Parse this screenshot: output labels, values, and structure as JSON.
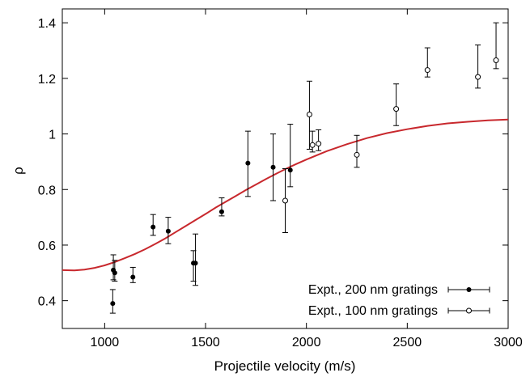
{
  "chart_data": {
    "type": "scatter",
    "xlabel": "Projectile velocity (m/s)",
    "ylabel": "ρ",
    "xlim": [
      790,
      3000
    ],
    "ylim": [
      0.3,
      1.45
    ],
    "xticks": [
      {
        "value": 1000,
        "label": "1000"
      },
      {
        "value": 1500,
        "label": "1500"
      },
      {
        "value": 2000,
        "label": "2000"
      },
      {
        "value": 2500,
        "label": "2500"
      },
      {
        "value": 3000,
        "label": "3000"
      }
    ],
    "yticks": [
      {
        "value": 0.4,
        "label": "0.4"
      },
      {
        "value": 0.6,
        "label": "0.6"
      },
      {
        "value": 0.8,
        "label": "0.8"
      },
      {
        "value": 1.0,
        "label": "1"
      },
      {
        "value": 1.2,
        "label": "1.2"
      },
      {
        "value": 1.4,
        "label": "1.4"
      }
    ],
    "grid": false,
    "legend_position": "bottom-right",
    "series": [
      {
        "name": "Expt., 200 nm gratings",
        "marker": "filled-circle",
        "color": "#000000",
        "points": [
          {
            "x": 1040,
            "y": 0.39,
            "ylo": 0.355,
            "yhi": 0.44
          },
          {
            "x": 1043,
            "y": 0.51,
            "ylo": 0.475,
            "yhi": 0.565
          },
          {
            "x": 1050,
            "y": 0.5,
            "ylo": 0.47,
            "yhi": 0.545
          },
          {
            "x": 1140,
            "y": 0.485,
            "ylo": 0.465,
            "yhi": 0.52
          },
          {
            "x": 1240,
            "y": 0.665,
            "ylo": 0.635,
            "yhi": 0.71
          },
          {
            "x": 1315,
            "y": 0.65,
            "ylo": 0.605,
            "yhi": 0.7
          },
          {
            "x": 1440,
            "y": 0.535,
            "ylo": 0.47,
            "yhi": 0.58
          },
          {
            "x": 1450,
            "y": 0.535,
            "ylo": 0.455,
            "yhi": 0.64
          },
          {
            "x": 1580,
            "y": 0.72,
            "ylo": 0.705,
            "yhi": 0.77
          },
          {
            "x": 1710,
            "y": 0.895,
            "ylo": 0.775,
            "yhi": 1.01
          },
          {
            "x": 1835,
            "y": 0.88,
            "ylo": 0.76,
            "yhi": 1.0
          },
          {
            "x": 1920,
            "y": 0.87,
            "ylo": 0.81,
            "yhi": 1.035
          }
        ]
      },
      {
        "name": "Expt., 100 nm gratings",
        "marker": "open-circle",
        "color": "#000000",
        "points": [
          {
            "x": 1895,
            "y": 0.76,
            "ylo": 0.645,
            "yhi": 0.875
          },
          {
            "x": 2015,
            "y": 1.07,
            "ylo": 0.945,
            "yhi": 1.19
          },
          {
            "x": 2030,
            "y": 0.96,
            "ylo": 0.935,
            "yhi": 1.01
          },
          {
            "x": 2060,
            "y": 0.965,
            "ylo": 0.94,
            "yhi": 1.015
          },
          {
            "x": 2250,
            "y": 0.925,
            "ylo": 0.88,
            "yhi": 0.995
          },
          {
            "x": 2445,
            "y": 1.09,
            "ylo": 1.03,
            "yhi": 1.18
          },
          {
            "x": 2600,
            "y": 1.23,
            "ylo": 1.205,
            "yhi": 1.31
          },
          {
            "x": 2850,
            "y": 1.205,
            "ylo": 1.165,
            "yhi": 1.32
          },
          {
            "x": 2940,
            "y": 1.265,
            "ylo": 1.235,
            "yhi": 1.4
          }
        ]
      }
    ],
    "curve": {
      "color": "#c8282d",
      "points": [
        [
          790,
          0.51
        ],
        [
          850,
          0.509
        ],
        [
          900,
          0.512
        ],
        [
          950,
          0.518
        ],
        [
          1000,
          0.527
        ],
        [
          1050,
          0.539
        ],
        [
          1100,
          0.553
        ],
        [
          1150,
          0.568
        ],
        [
          1200,
          0.585
        ],
        [
          1250,
          0.604
        ],
        [
          1300,
          0.624
        ],
        [
          1350,
          0.646
        ],
        [
          1400,
          0.668
        ],
        [
          1450,
          0.69
        ],
        [
          1500,
          0.712
        ],
        [
          1550,
          0.735
        ],
        [
          1600,
          0.756
        ],
        [
          1650,
          0.777
        ],
        [
          1700,
          0.798
        ],
        [
          1750,
          0.818
        ],
        [
          1800,
          0.838
        ],
        [
          1850,
          0.857
        ],
        [
          1900,
          0.875
        ],
        [
          1950,
          0.892
        ],
        [
          2000,
          0.908
        ],
        [
          2100,
          0.938
        ],
        [
          2200,
          0.963
        ],
        [
          2300,
          0.985
        ],
        [
          2400,
          1.003
        ],
        [
          2500,
          1.017
        ],
        [
          2600,
          1.029
        ],
        [
          2700,
          1.038
        ],
        [
          2800,
          1.044
        ],
        [
          2900,
          1.049
        ],
        [
          3000,
          1.052
        ]
      ]
    }
  }
}
